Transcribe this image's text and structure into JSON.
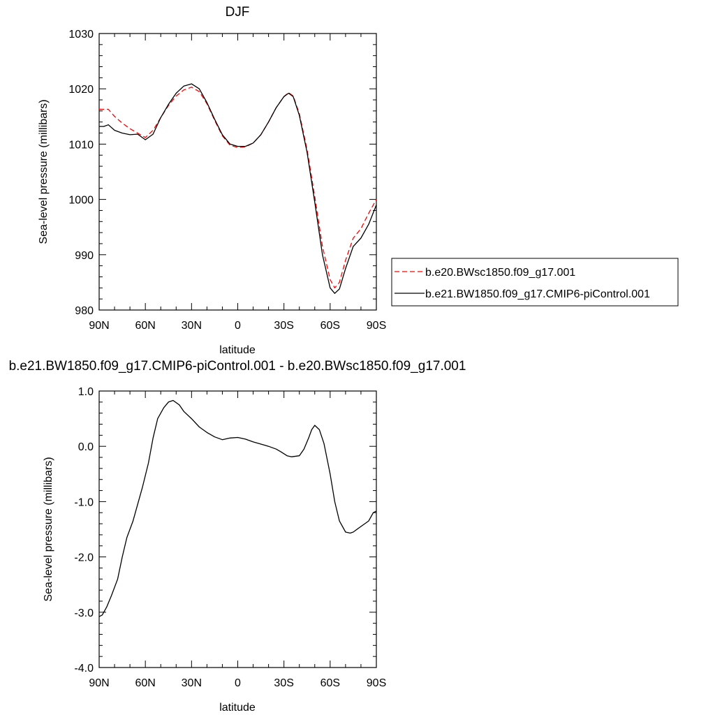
{
  "chart_data": [
    {
      "type": "line",
      "title": "DJF",
      "xlabel": "latitude",
      "ylabel": "Sea-level pressure (millibars)",
      "xlim": [
        90,
        -90
      ],
      "ylim": [
        980,
        1030
      ],
      "xticks": [
        90,
        60,
        30,
        0,
        -30,
        -60,
        -90
      ],
      "xtick_labels": [
        "90N",
        "60N",
        "30N",
        "0",
        "30S",
        "60S",
        "90S"
      ],
      "yticks": [
        980,
        990,
        1000,
        1010,
        1020,
        1030
      ],
      "ytick_labels": [
        "980",
        "990",
        "1000",
        "1010",
        "1020",
        "1030"
      ],
      "legend": "right",
      "series": [
        {
          "name": "b.e20.BWsc1850.f09_g17.001",
          "color": "#ff0000",
          "dash": "dashed",
          "x": [
            90,
            84,
            80,
            75,
            70,
            65,
            60,
            55,
            50,
            45,
            40,
            35,
            30,
            25,
            20,
            15,
            10,
            5,
            0,
            -5,
            -10,
            -15,
            -20,
            -25,
            -30,
            -33,
            -36,
            -40,
            -45,
            -50,
            -55,
            -60,
            -63,
            -66,
            -70,
            -75,
            -80,
            -85,
            -90
          ],
          "y": [
            1016.3,
            1016.3,
            1015.0,
            1013.8,
            1012.8,
            1012.0,
            1011.2,
            1012.5,
            1014.8,
            1017.0,
            1018.7,
            1019.8,
            1020.3,
            1019.5,
            1017.3,
            1014.3,
            1011.5,
            1009.8,
            1009.4,
            1009.5,
            1010.2,
            1011.7,
            1014.0,
            1016.6,
            1018.6,
            1019.3,
            1018.7,
            1015.5,
            1009.0,
            1000.5,
            991.5,
            985.5,
            984.0,
            985.0,
            989.0,
            993.0,
            994.7,
            997.5,
            1000.0
          ]
        },
        {
          "name": "b.e21.BW1850.f09_g17.CMIP6-piControl.001",
          "color": "#000000",
          "dash": "solid",
          "x": [
            90,
            87,
            84,
            80,
            75,
            70,
            65,
            60,
            55,
            50,
            45,
            40,
            35,
            30,
            25,
            20,
            15,
            10,
            5,
            0,
            -5,
            -10,
            -15,
            -20,
            -25,
            -30,
            -33,
            -36,
            -40,
            -45,
            -50,
            -55,
            -60,
            -63,
            -66,
            -70,
            -75,
            -80,
            -85,
            -90
          ],
          "y": [
            1013.2,
            1013.2,
            1013.5,
            1012.5,
            1012.0,
            1011.7,
            1011.8,
            1010.8,
            1011.8,
            1014.8,
            1017.2,
            1019.2,
            1020.5,
            1020.9,
            1020.0,
            1017.5,
            1014.5,
            1011.7,
            1010.0,
            1009.6,
            1009.6,
            1010.2,
            1011.7,
            1014.0,
            1016.6,
            1018.6,
            1019.2,
            1018.6,
            1015.2,
            1008.5,
            999.5,
            990.0,
            984.0,
            983.0,
            983.8,
            987.5,
            991.5,
            993.0,
            995.5,
            999.0
          ]
        }
      ]
    },
    {
      "type": "line",
      "title": "b.e21.BW1850.f09_g17.CMIP6-piControl.001 - b.e20.BWsc1850.f09_g17.001",
      "xlabel": "latitude",
      "ylabel": "Sea-level pressure (millibars)",
      "xlim": [
        90,
        -90
      ],
      "ylim": [
        -4,
        1
      ],
      "xticks": [
        90,
        60,
        30,
        0,
        -30,
        -60,
        -90
      ],
      "xtick_labels": [
        "90N",
        "60N",
        "30N",
        "0",
        "30S",
        "60S",
        "90S"
      ],
      "yticks": [
        -4,
        -3,
        -2,
        -1,
        0,
        1
      ],
      "ytick_labels": [
        "-4.0",
        "-3.0",
        "-2.0",
        "-1.0",
        "0.0",
        "1.0"
      ],
      "series": [
        {
          "color": "#000000",
          "dash": "solid",
          "x": [
            90,
            88,
            85,
            82,
            78,
            75,
            72,
            68,
            65,
            62,
            58,
            55,
            52,
            48,
            45,
            42,
            38,
            35,
            30,
            25,
            20,
            15,
            10,
            5,
            0,
            -5,
            -10,
            -15,
            -20,
            -25,
            -28,
            -32,
            -35,
            -40,
            -43,
            -46,
            -48,
            -50,
            -53,
            -56,
            -60,
            -63,
            -66,
            -70,
            -73,
            -75,
            -80,
            -85,
            -88,
            -90
          ],
          "y": [
            -3.08,
            -3.05,
            -2.9,
            -2.7,
            -2.4,
            -2.0,
            -1.65,
            -1.35,
            -1.05,
            -0.75,
            -0.3,
            0.15,
            0.5,
            0.7,
            0.8,
            0.83,
            0.75,
            0.63,
            0.5,
            0.35,
            0.25,
            0.17,
            0.12,
            0.15,
            0.16,
            0.13,
            0.08,
            0.04,
            0.0,
            -0.05,
            -0.1,
            -0.17,
            -0.19,
            -0.17,
            -0.05,
            0.15,
            0.3,
            0.38,
            0.3,
            0.05,
            -0.5,
            -1.0,
            -1.35,
            -1.55,
            -1.57,
            -1.55,
            -1.45,
            -1.35,
            -1.2,
            -1.17
          ]
        }
      ]
    }
  ]
}
